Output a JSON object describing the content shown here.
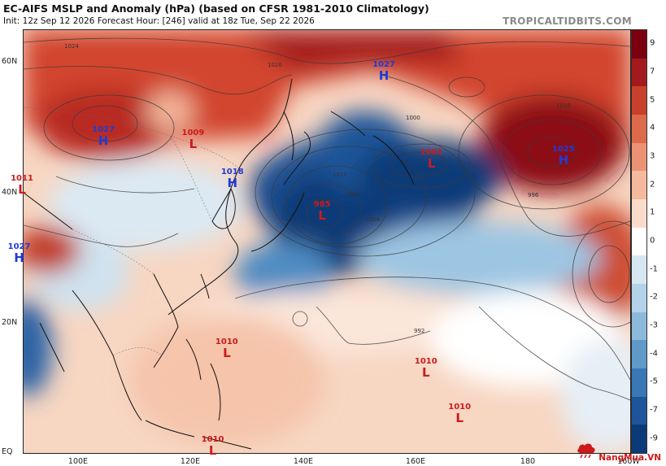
{
  "header": {
    "title": "EC-AIFS MSLP and Anomaly (hPa) (based on CFSR 1981-2010 Climatology)",
    "subtitle": "Init: 12z Sep 12 2026   Forecast Hour: [246]   valid at 18z Tue, Sep 22 2026",
    "brand": "TROPICALTIDBITS.COM"
  },
  "axes": {
    "latitudes": [
      "60N",
      "40N",
      "20N",
      "EQ"
    ],
    "longitudes": [
      "100E",
      "120E",
      "140E",
      "160E",
      "180",
      "160W"
    ]
  },
  "colorbar": {
    "labels": [
      "9",
      "7",
      "5",
      "4",
      "3",
      "2",
      "1",
      "0",
      "-1",
      "-2",
      "-3",
      "-4",
      "-5",
      "-7",
      "-9"
    ],
    "colors": [
      "#7a0010",
      "#a31a1c",
      "#c8402c",
      "#de6a4c",
      "#ec9274",
      "#f5b99e",
      "#fbdccb",
      "#ffffff",
      "#d6e7f2",
      "#b3d3e9",
      "#8bbadc",
      "#5f9ac9",
      "#3977b5",
      "#1e559a",
      "#0b3a78"
    ]
  },
  "pressure_centers": [
    {
      "type": "H",
      "value": "1027",
      "lat": 58.5,
      "lon": 154.5
    },
    {
      "type": "H",
      "value": "1027",
      "lat": 48.5,
      "lon": 104.5
    },
    {
      "type": "L",
      "value": "1009",
      "lat": 48,
      "lon": 120.5
    },
    {
      "type": "L",
      "value": "1011",
      "lat": 41,
      "lon": 90
    },
    {
      "type": "H",
      "value": "1018",
      "lat": 42,
      "lon": 127.5
    },
    {
      "type": "L",
      "value": "985",
      "lat": 37,
      "lon": 143.5
    },
    {
      "type": "L",
      "value": "1001",
      "lat": 45,
      "lon": 163
    },
    {
      "type": "H",
      "value": "1025",
      "lat": 45.5,
      "lon": 186.5
    },
    {
      "type": "H",
      "value": "1027",
      "lat": 30.5,
      "lon": 89.5
    },
    {
      "type": "L",
      "value": "1010",
      "lat": 16,
      "lon": 126.5
    },
    {
      "type": "L",
      "value": "1010",
      "lat": 13,
      "lon": 162
    },
    {
      "type": "L",
      "value": "1010",
      "lat": 6,
      "lon": 168
    },
    {
      "type": "L",
      "value": "1010",
      "lat": 1,
      "lon": 124
    }
  ],
  "isobar_labels": [
    "1024",
    "1020",
    "1016",
    "1012",
    "1008",
    "1004",
    "1000",
    "996",
    "992"
  ],
  "watermark": {
    "text": "NangMua.VN",
    "icon": "cloud-rain-icon",
    "color": "#d01818"
  }
}
